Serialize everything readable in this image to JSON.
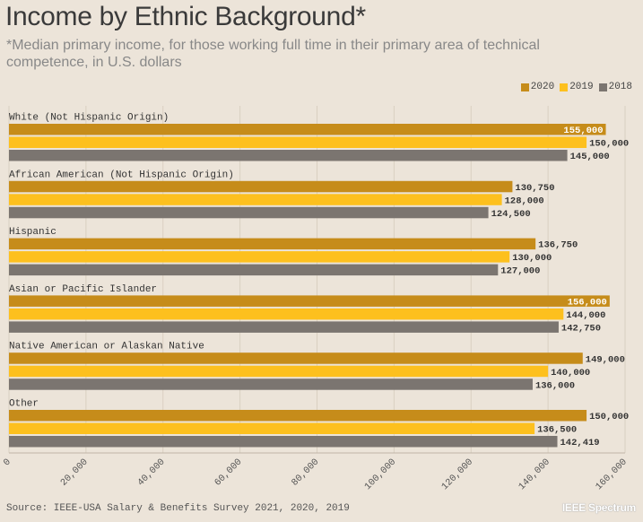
{
  "chart_data": {
    "type": "bar",
    "orientation": "horizontal",
    "title": "Income by Ethnic Background*",
    "subtitle": "*Median primary income, for those working full time in their primary area of technical competence, in U.S. dollars",
    "categories": [
      "White (Not Hispanic Origin)",
      "African American (Not Hispanic Origin)",
      "Hispanic",
      "Asian or Pacific Islander",
      "Native American or Alaskan Native",
      "Other"
    ],
    "series": [
      {
        "name": "2020",
        "color": "#c68c1a",
        "values": [
          155000,
          130750,
          136750,
          156000,
          149000,
          150000
        ],
        "labels": [
          "155,000",
          "130,750",
          "136,750",
          "156,000",
          "149,000",
          "150,000"
        ]
      },
      {
        "name": "2019",
        "color": "#fdc01e",
        "values": [
          150000,
          128000,
          130000,
          144000,
          140000,
          136500
        ],
        "labels": [
          "150,000",
          "128,000",
          "130,000",
          "144,000",
          "140,000",
          "136,500"
        ]
      },
      {
        "name": "2018",
        "color": "#7b7570",
        "values": [
          145000,
          124500,
          127000,
          142750,
          136000,
          142419
        ],
        "labels": [
          "145,000",
          "124,500",
          "127,000",
          "142,750",
          "136,000",
          "142,419"
        ]
      }
    ],
    "xlim": [
      0,
      160000
    ],
    "xticks": [
      0,
      20000,
      40000,
      60000,
      80000,
      100000,
      120000,
      140000,
      160000
    ],
    "xtick_labels": [
      "0",
      "20,000",
      "40,000",
      "60,000",
      "80,000",
      "100,000",
      "120,000",
      "140,000",
      "160,000"
    ],
    "legend_position": "top-right",
    "grid": true
  },
  "source": "Source: IEEE-USA Salary & Benefits Survey 2021, 2020, 2019",
  "brand": "IEEE Spectrum"
}
